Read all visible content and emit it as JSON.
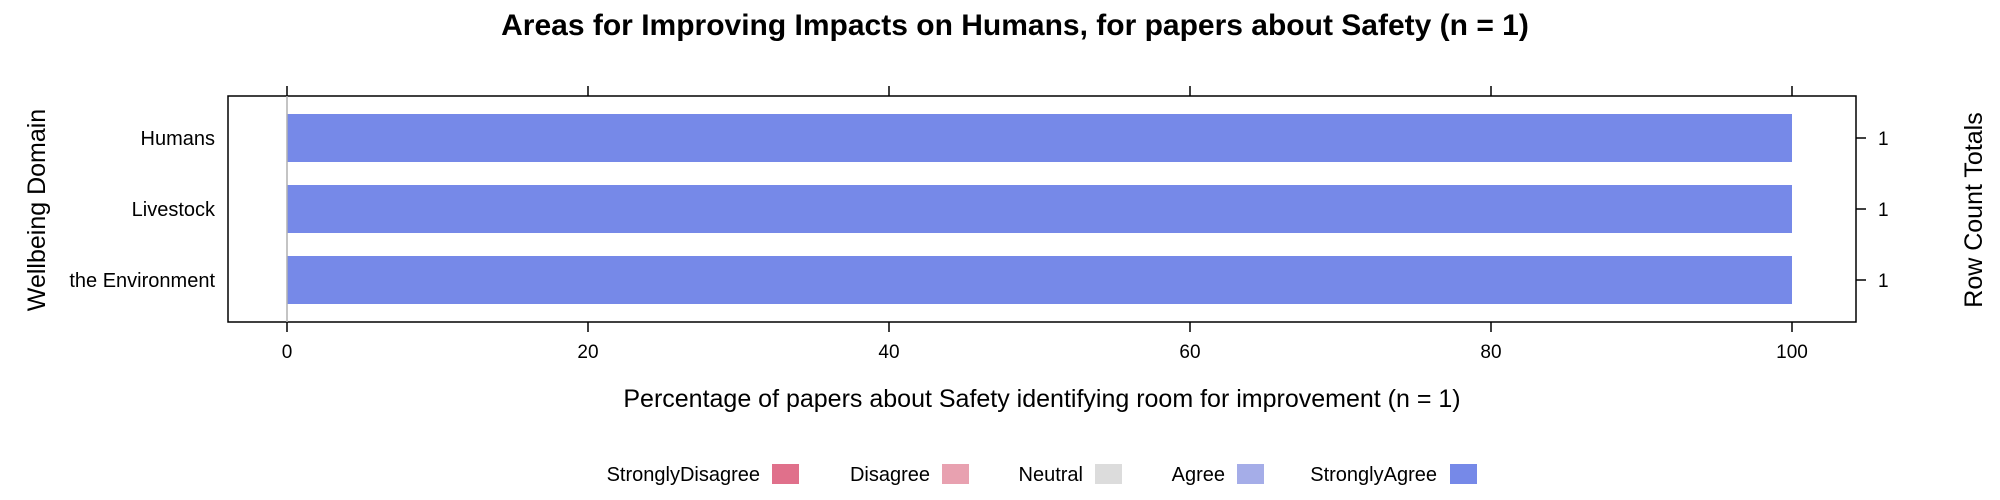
{
  "chart_data": {
    "type": "bar",
    "orientation": "horizontal",
    "stacked": true,
    "title": "Areas for Improving Impacts on Humans, for papers about Safety (n = 1)",
    "xlabel": "Percentage of papers about Safety identifying room for improvement (n = 1)",
    "ylabel": "Wellbeing Domain",
    "ylabel_right": "Row Count Totals",
    "xlim": [
      0,
      100
    ],
    "x_ticks": [
      0,
      20,
      40,
      60,
      80,
      100
    ],
    "grid": false,
    "categories": [
      "Humans",
      "Livestock",
      "the Environment"
    ],
    "row_totals": [
      1,
      1,
      1
    ],
    "series": [
      {
        "name": "StronglyDisagree",
        "color": "#e0708b",
        "values": [
          0,
          0,
          0
        ]
      },
      {
        "name": "Disagree",
        "color": "#e8a1b0",
        "values": [
          0,
          0,
          0
        ]
      },
      {
        "name": "Neutral",
        "color": "#dcdcdc",
        "values": [
          0,
          0,
          0
        ]
      },
      {
        "name": "Agree",
        "color": "#a5ade8",
        "values": [
          0,
          0,
          0
        ]
      },
      {
        "name": "StronglyAgree",
        "color": "#7689e8",
        "values": [
          100,
          100,
          100
        ]
      }
    ],
    "legend_position": "bottom"
  }
}
